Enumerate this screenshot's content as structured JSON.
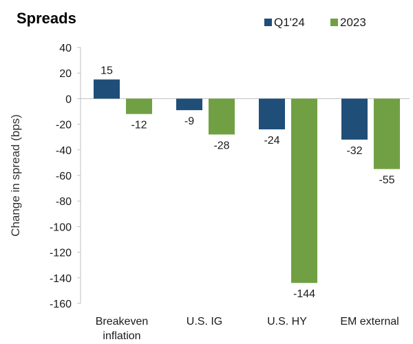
{
  "chart_data": {
    "type": "bar",
    "title": "Spreads",
    "ylabel": "Change in spread (bps)",
    "xlabel": "",
    "ylim": [
      -160,
      40
    ],
    "yticks": [
      40,
      20,
      0,
      -20,
      -40,
      -60,
      -80,
      -100,
      -120,
      -140,
      -160
    ],
    "grid": false,
    "legend_position": "top-right",
    "categories": [
      [
        "Breakeven",
        "inflation"
      ],
      [
        "U.S. IG"
      ],
      [
        "U.S. HY"
      ],
      [
        "EM external"
      ]
    ],
    "series": [
      {
        "name": "Q1'24",
        "color": "#1f4e79",
        "values": [
          15,
          -9,
          -24,
          -32
        ],
        "labels": [
          "15",
          "-9",
          "-24",
          "-32"
        ]
      },
      {
        "name": "2023",
        "color": "#70a043",
        "values": [
          -12,
          -28,
          -144,
          -55
        ],
        "labels": [
          "-12",
          "-28",
          "-144",
          "-55"
        ]
      }
    ]
  }
}
